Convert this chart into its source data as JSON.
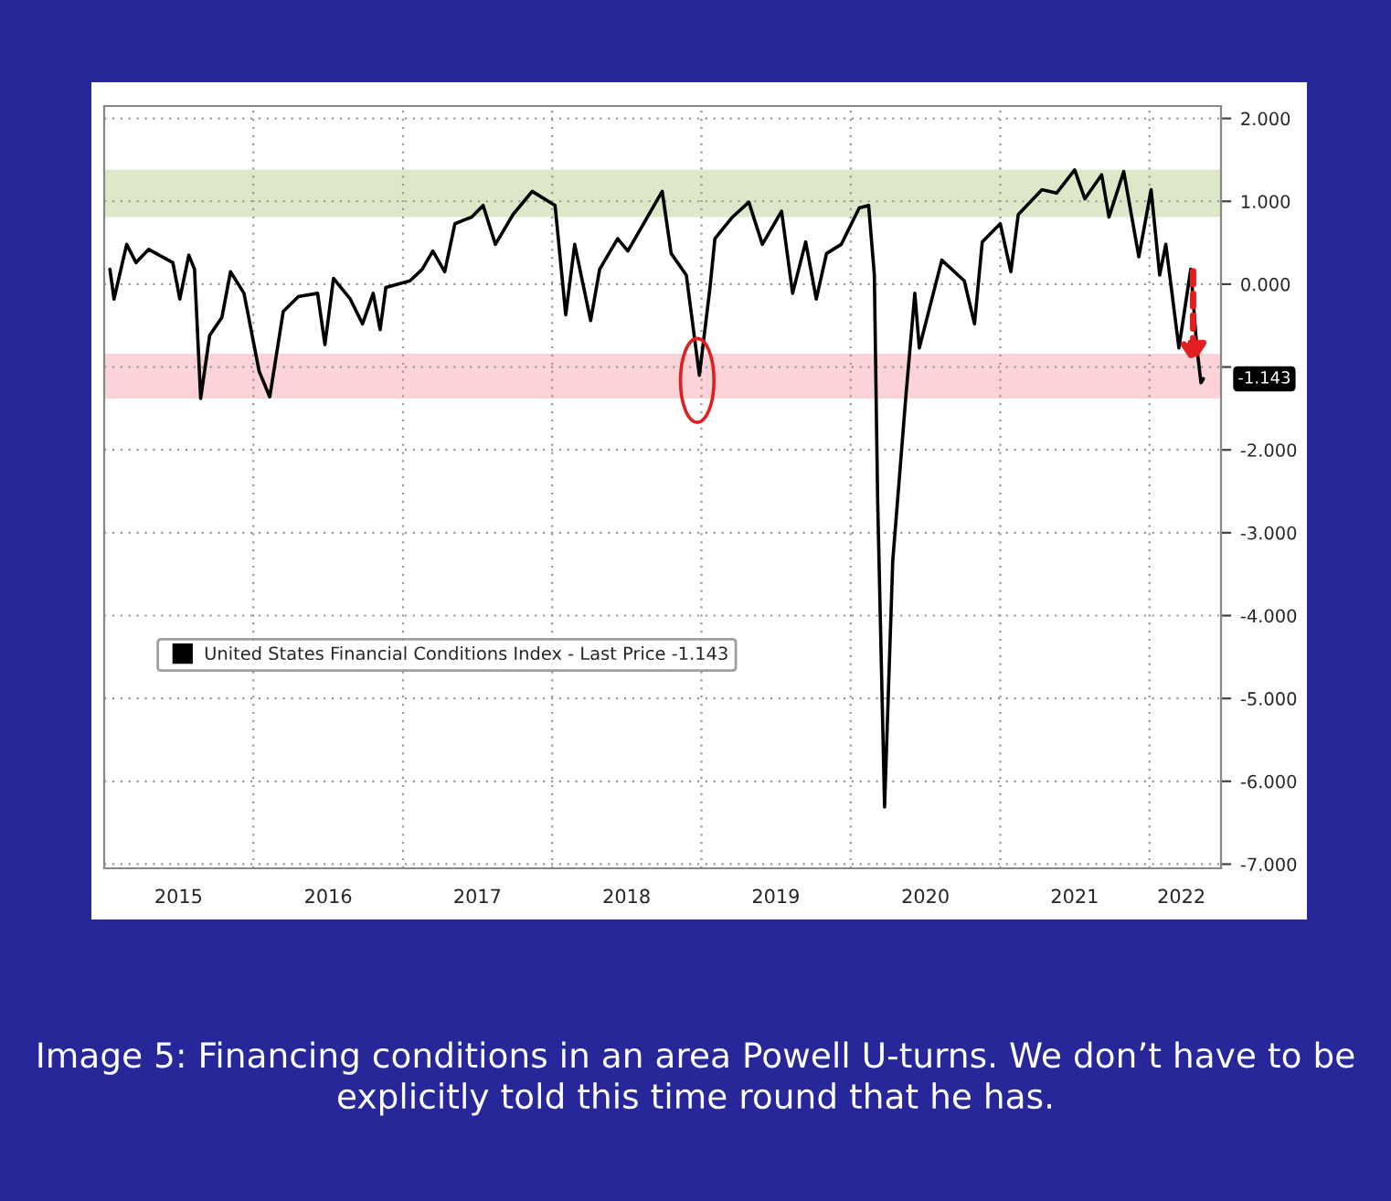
{
  "chart_data": {
    "type": "line",
    "x": [
      "2015-01-15",
      "2015-01-25",
      "2015-02-25",
      "2015-03-20",
      "2015-04-20",
      "2015-06-18",
      "2015-07-05",
      "2015-07-27",
      "2015-08-10",
      "2015-08-25",
      "2015-09-16",
      "2015-10-16",
      "2015-11-06",
      "2015-12-09",
      "2016-01-15",
      "2016-02-10",
      "2016-03-14",
      "2016-04-20",
      "2016-06-06",
      "2016-06-24",
      "2016-07-15",
      "2016-08-25",
      "2016-09-24",
      "2016-10-20",
      "2016-11-06",
      "2016-11-20",
      "2017-01-18",
      "2017-02-17",
      "2017-03-15",
      "2017-04-13",
      "2017-05-08",
      "2017-06-18",
      "2017-07-16",
      "2017-08-15",
      "2017-09-27",
      "2017-11-13",
      "2018-01-08",
      "2018-02-03",
      "2018-02-25",
      "2018-04-05",
      "2018-04-27",
      "2018-06-10",
      "2018-07-05",
      "2018-09-27",
      "2018-10-19",
      "2018-11-25",
      "2018-12-27",
      "2019-01-22",
      "2019-02-03",
      "2019-03-18",
      "2019-04-27",
      "2019-05-30",
      "2019-07-16",
      "2019-08-12",
      "2019-09-13",
      "2019-10-09",
      "2019-11-03",
      "2019-12-09",
      "2020-01-22",
      "2020-02-14",
      "2020-02-28",
      "2020-03-07",
      "2020-03-24",
      "2020-04-13",
      "2020-05-15",
      "2020-06-06",
      "2020-06-17",
      "2020-08-11",
      "2020-10-05",
      "2020-10-30",
      "2020-11-18",
      "2021-01-01",
      "2021-01-27",
      "2021-02-14",
      "2021-04-13",
      "2021-05-19",
      "2021-07-02",
      "2021-07-27",
      "2021-09-06",
      "2021-09-24",
      "2021-10-30",
      "2021-12-06",
      "2022-01-05",
      "2022-01-26",
      "2022-02-10",
      "2022-03-14",
      "2022-04-12",
      "2022-04-27",
      "2022-05-07",
      "2022-05-13"
    ],
    "series": [
      {
        "name": "United States Financial Conditions Index - Last Price -1.143",
        "color": "#000000",
        "values": [
          0.18,
          -0.18,
          0.48,
          0.26,
          0.42,
          0.26,
          -0.18,
          0.35,
          0.18,
          -1.38,
          -0.62,
          -0.4,
          0.15,
          -0.11,
          -1.05,
          -1.36,
          -0.33,
          -0.15,
          -0.11,
          -0.73,
          0.07,
          -0.18,
          -0.48,
          -0.11,
          -0.55,
          -0.04,
          0.04,
          0.18,
          0.4,
          0.15,
          0.73,
          0.81,
          0.95,
          0.48,
          0.84,
          1.12,
          0.95,
          -0.37,
          0.48,
          -0.44,
          0.18,
          0.55,
          0.4,
          1.12,
          0.37,
          0.11,
          -1.1,
          -0.04,
          0.55,
          0.81,
          0.99,
          0.48,
          0.88,
          -0.11,
          0.51,
          -0.18,
          0.37,
          0.48,
          0.92,
          0.95,
          0.11,
          -2.59,
          -6.31,
          -3.34,
          -1.36,
          -0.11,
          -0.77,
          0.29,
          0.04,
          -0.48,
          0.51,
          0.73,
          0.15,
          0.84,
          1.14,
          1.1,
          1.38,
          1.03,
          1.32,
          0.81,
          1.36,
          0.33,
          1.14,
          0.11,
          0.48,
          -0.77,
          0.18,
          -0.77,
          -1.19,
          -1.14
        ]
      }
    ],
    "xlim": [
      "2015-01-01",
      "2022-06-25"
    ],
    "xticks": [
      {
        "value": "2015-07-02",
        "label": "2015"
      },
      {
        "value": "2016-01-01",
        "label": null
      },
      {
        "value": "2016-07-02",
        "label": "2016"
      },
      {
        "value": "2017-01-01",
        "label": null
      },
      {
        "value": "2017-07-02",
        "label": "2017"
      },
      {
        "value": "2018-01-01",
        "label": null
      },
      {
        "value": "2018-07-02",
        "label": "2018"
      },
      {
        "value": "2019-01-01",
        "label": null
      },
      {
        "value": "2019-07-02",
        "label": "2019"
      },
      {
        "value": "2020-01-01",
        "label": null
      },
      {
        "value": "2020-07-02",
        "label": "2020"
      },
      {
        "value": "2021-01-01",
        "label": null
      },
      {
        "value": "2021-07-02",
        "label": "2021"
      },
      {
        "value": "2022-01-01",
        "label": null
      },
      {
        "value": "2022-03-20",
        "label": "2022"
      }
    ],
    "ylim": [
      -7.05,
      2.15
    ],
    "yticks": [
      {
        "value": 2,
        "label": "2.000"
      },
      {
        "value": 1,
        "label": "1.000"
      },
      {
        "value": 0,
        "label": "0.000"
      },
      {
        "value": -1,
        "label": null
      },
      {
        "value": -2,
        "label": "-2.000"
      },
      {
        "value": -3,
        "label": "-3.000"
      },
      {
        "value": -4,
        "label": "-4.000"
      },
      {
        "value": -5,
        "label": "-5.000"
      },
      {
        "value": -6,
        "label": "-6.000"
      },
      {
        "value": -7,
        "label": "-7.000"
      }
    ],
    "bands": [
      {
        "axis": "y",
        "from": 0.81,
        "to": 1.38,
        "color": "#dde8c8"
      },
      {
        "axis": "y",
        "from": -1.38,
        "to": -0.84,
        "color": "#fbd3d8"
      }
    ],
    "annotations": [
      {
        "text": "-1.143",
        "x": "2022-05-13",
        "y": -1.143
      },
      "Image 5: Financing conditions in an area Powell U-turns. We don’t have to be explicitly told this time round that he has."
    ],
    "grid": true,
    "legend": "center left",
    "line_style": "solid",
    "marker": "none"
  }
}
